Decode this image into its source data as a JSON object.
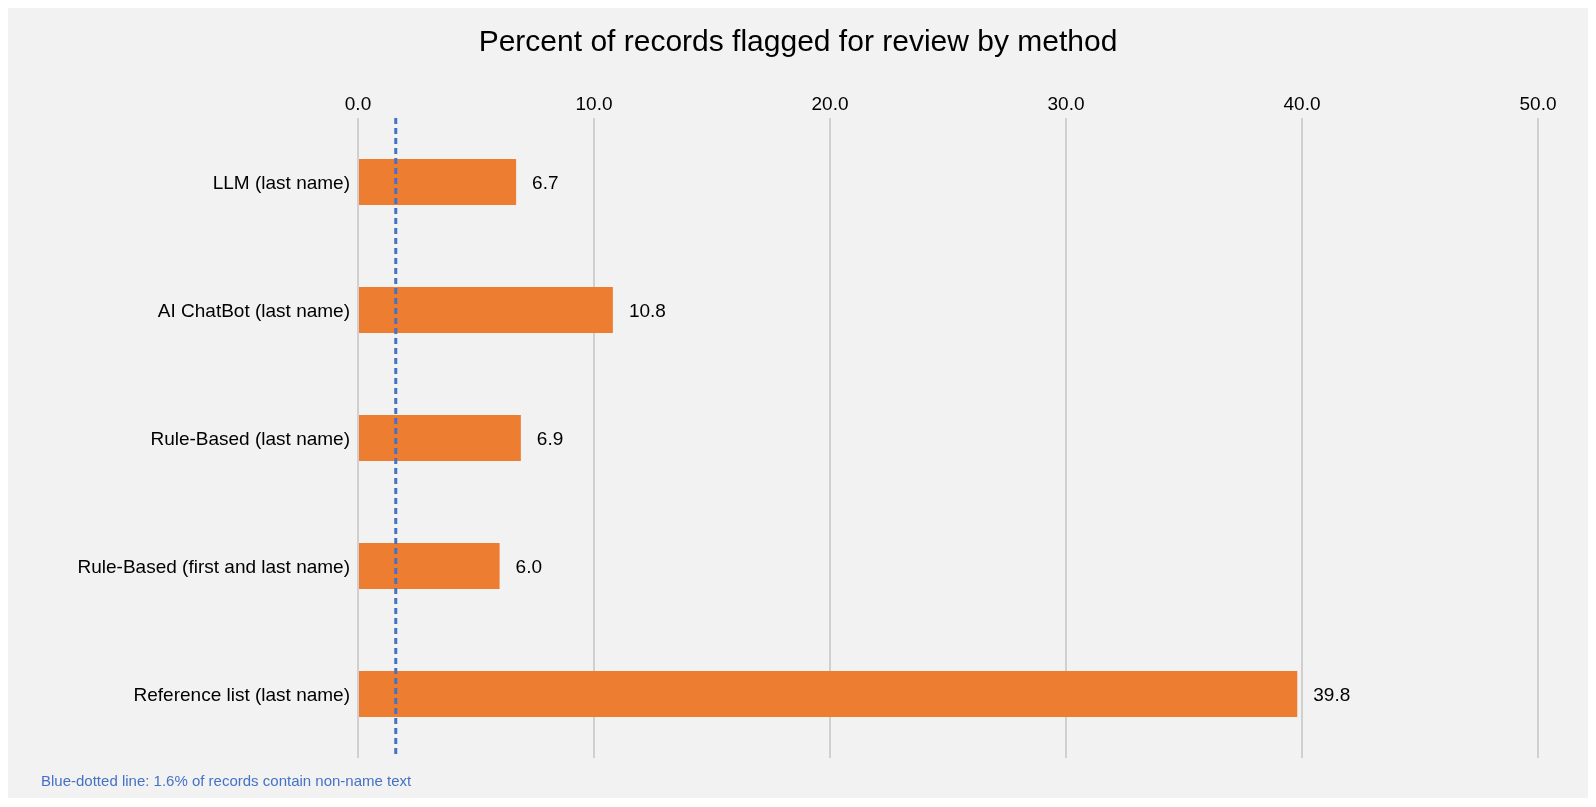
{
  "chart_data": {
    "type": "bar",
    "orientation": "horizontal",
    "title": "Percent of records flagged for review by method",
    "categories": [
      "LLM (last name)",
      "AI ChatBot  (last name)",
      "Rule-Based (last name)",
      "Rule-Based (first and last name)",
      "Reference list (last name)"
    ],
    "values": [
      6.7,
      10.8,
      6.9,
      6.0,
      39.8
    ],
    "value_labels": [
      "6.7",
      "10.8",
      "6.9",
      "6.0",
      "39.8"
    ],
    "color": "#ed7d31",
    "xlim": [
      0,
      50
    ],
    "xticks": [
      {
        "value": 0,
        "label": "0.0"
      },
      {
        "value": 10,
        "label": "10.0"
      },
      {
        "value": 20,
        "label": "20.0"
      },
      {
        "value": 30,
        "label": "30.0"
      },
      {
        "value": 40,
        "label": "40.0"
      },
      {
        "value": 50,
        "label": "50.0"
      }
    ],
    "grid": "x",
    "ref_lines": [
      {
        "axis": "x",
        "value": 1.6,
        "color": "#4472c4",
        "line_style": "dashed"
      }
    ],
    "annotations": [
      "Blue-dotted line: 1.6% of records contain non-name text"
    ]
  }
}
